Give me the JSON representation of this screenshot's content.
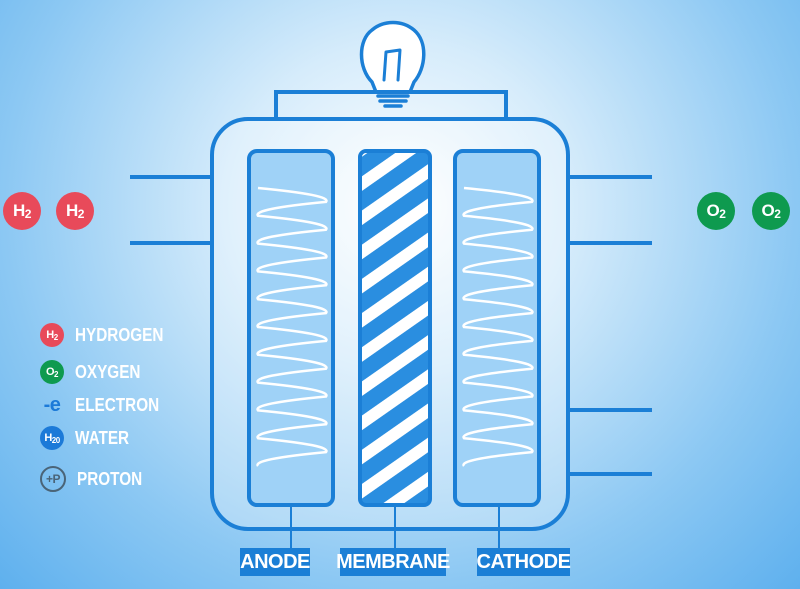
{
  "molecules": {
    "left": [
      {
        "symbol": "H",
        "subscript": "2",
        "color": "#e84a5a"
      },
      {
        "symbol": "H",
        "subscript": "2",
        "color": "#e84a5a"
      }
    ],
    "right": [
      {
        "symbol": "O",
        "subscript": "2",
        "color": "#0e9a4f"
      },
      {
        "symbol": "O",
        "subscript": "2",
        "color": "#0e9a4f"
      }
    ]
  },
  "legend": [
    {
      "badge": "H",
      "badge_sub": "2",
      "label": "HYDROGEN",
      "color": "#e84a5a",
      "kind": "circle"
    },
    {
      "badge": "O",
      "badge_sub": "2",
      "label": "OXYGEN",
      "color": "#0e9a4f",
      "kind": "circle"
    },
    {
      "badge": "-e",
      "badge_sub": "",
      "label": "ELECTRON",
      "color": "#1c7ad8",
      "kind": "text"
    },
    {
      "badge": "H",
      "badge_sub": "20",
      "label": "WATER",
      "color": "#1c7ad8",
      "kind": "circle"
    },
    {
      "badge": "+P",
      "badge_sub": "",
      "label": "PROTON",
      "color": "#4a6478",
      "kind": "outline"
    }
  ],
  "components": {
    "anode": "ANODE",
    "membrane": "MEMBRANE",
    "cathode": "CATHODE"
  },
  "colors": {
    "outline": "#1b7fd6",
    "chamber_fill": "#cfe8fb",
    "membrane_stripe": "#2a8ee0",
    "coil": "#ffffff"
  },
  "icons": [
    "light-bulb-icon"
  ]
}
